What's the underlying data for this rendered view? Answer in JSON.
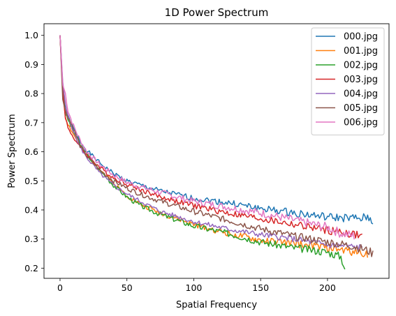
{
  "chart_data": {
    "type": "line",
    "title": "1D Power Spectrum",
    "xlabel": "Spatial Frequency",
    "ylabel": "Power Spectrum",
    "xlim": [
      -12,
      246
    ],
    "ylim": [
      0.165,
      1.04
    ],
    "xticks": [
      0,
      50,
      100,
      150,
      200
    ],
    "yticks": [
      0.2,
      0.3,
      0.4,
      0.5,
      0.6,
      0.7,
      0.8,
      0.9,
      1.0
    ],
    "grid": false,
    "legend_position": "top-right",
    "series": [
      {
        "name": "000.jpg",
        "color": "#1f77b4",
        "x_max": 234,
        "noise": 0.006,
        "seed": 1,
        "points": [
          [
            0,
            1.0
          ],
          [
            2,
            0.82
          ],
          [
            4,
            0.74
          ],
          [
            6,
            0.72
          ],
          [
            10,
            0.68
          ],
          [
            15,
            0.635
          ],
          [
            20,
            0.605
          ],
          [
            30,
            0.56
          ],
          [
            40,
            0.525
          ],
          [
            50,
            0.5
          ],
          [
            60,
            0.485
          ],
          [
            75,
            0.465
          ],
          [
            100,
            0.44
          ],
          [
            125,
            0.425
          ],
          [
            150,
            0.405
          ],
          [
            175,
            0.39
          ],
          [
            200,
            0.375
          ],
          [
            225,
            0.37
          ],
          [
            230,
            0.375
          ],
          [
            234,
            0.36
          ]
        ]
      },
      {
        "name": "001.jpg",
        "color": "#ff7f0e",
        "x_max": 230,
        "noise": 0.006,
        "seed": 2,
        "points": [
          [
            0,
            1.0
          ],
          [
            2,
            0.8
          ],
          [
            4,
            0.72
          ],
          [
            6,
            0.695
          ],
          [
            10,
            0.66
          ],
          [
            15,
            0.62
          ],
          [
            20,
            0.585
          ],
          [
            30,
            0.54
          ],
          [
            40,
            0.49
          ],
          [
            50,
            0.45
          ],
          [
            60,
            0.42
          ],
          [
            75,
            0.39
          ],
          [
            100,
            0.35
          ],
          [
            125,
            0.32
          ],
          [
            150,
            0.295
          ],
          [
            175,
            0.285
          ],
          [
            200,
            0.27
          ],
          [
            215,
            0.26
          ],
          [
            230,
            0.25
          ]
        ]
      },
      {
        "name": "002.jpg",
        "color": "#2ca02c",
        "x_max": 213,
        "noise": 0.006,
        "seed": 3,
        "points": [
          [
            0,
            1.0
          ],
          [
            2,
            0.82
          ],
          [
            4,
            0.73
          ],
          [
            6,
            0.71
          ],
          [
            10,
            0.67
          ],
          [
            15,
            0.625
          ],
          [
            20,
            0.59
          ],
          [
            30,
            0.535
          ],
          [
            40,
            0.485
          ],
          [
            50,
            0.445
          ],
          [
            60,
            0.415
          ],
          [
            75,
            0.385
          ],
          [
            100,
            0.345
          ],
          [
            125,
            0.32
          ],
          [
            150,
            0.29
          ],
          [
            175,
            0.27
          ],
          [
            200,
            0.255
          ],
          [
            210,
            0.24
          ],
          [
            213,
            0.2
          ]
        ]
      },
      {
        "name": "003.jpg",
        "color": "#d62728",
        "x_max": 226,
        "noise": 0.006,
        "seed": 4,
        "points": [
          [
            0,
            1.0
          ],
          [
            2,
            0.81
          ],
          [
            4,
            0.72
          ],
          [
            6,
            0.68
          ],
          [
            10,
            0.65
          ],
          [
            15,
            0.615
          ],
          [
            20,
            0.59
          ],
          [
            30,
            0.545
          ],
          [
            40,
            0.51
          ],
          [
            50,
            0.49
          ],
          [
            60,
            0.47
          ],
          [
            75,
            0.445
          ],
          [
            100,
            0.415
          ],
          [
            125,
            0.39
          ],
          [
            150,
            0.37
          ],
          [
            175,
            0.35
          ],
          [
            200,
            0.33
          ],
          [
            215,
            0.32
          ],
          [
            226,
            0.31
          ]
        ]
      },
      {
        "name": "004.jpg",
        "color": "#9467bd",
        "x_max": 226,
        "noise": 0.005,
        "seed": 5,
        "points": [
          [
            0,
            1.0
          ],
          [
            2,
            0.84
          ],
          [
            4,
            0.76
          ],
          [
            6,
            0.72
          ],
          [
            10,
            0.67
          ],
          [
            15,
            0.615
          ],
          [
            20,
            0.58
          ],
          [
            30,
            0.525
          ],
          [
            40,
            0.485
          ],
          [
            50,
            0.455
          ],
          [
            60,
            0.43
          ],
          [
            75,
            0.395
          ],
          [
            100,
            0.36
          ],
          [
            125,
            0.335
          ],
          [
            150,
            0.315
          ],
          [
            175,
            0.3
          ],
          [
            200,
            0.28
          ],
          [
            215,
            0.275
          ],
          [
            226,
            0.27
          ]
        ]
      },
      {
        "name": "005.jpg",
        "color": "#8c564b",
        "x_max": 234,
        "noise": 0.006,
        "seed": 6,
        "points": [
          [
            0,
            1.0
          ],
          [
            2,
            0.78
          ],
          [
            4,
            0.74
          ],
          [
            6,
            0.72
          ],
          [
            10,
            0.68
          ],
          [
            15,
            0.62
          ],
          [
            20,
            0.585
          ],
          [
            30,
            0.535
          ],
          [
            40,
            0.5
          ],
          [
            50,
            0.475
          ],
          [
            60,
            0.455
          ],
          [
            75,
            0.43
          ],
          [
            100,
            0.395
          ],
          [
            125,
            0.365
          ],
          [
            150,
            0.335
          ],
          [
            175,
            0.31
          ],
          [
            200,
            0.29
          ],
          [
            220,
            0.275
          ],
          [
            230,
            0.26
          ],
          [
            234,
            0.25
          ]
        ]
      },
      {
        "name": "006.jpg",
        "color": "#e377c2",
        "x_max": 220,
        "noise": 0.007,
        "seed": 7,
        "points": [
          [
            0,
            1.0
          ],
          [
            2,
            0.83
          ],
          [
            4,
            0.8
          ],
          [
            6,
            0.74
          ],
          [
            10,
            0.69
          ],
          [
            15,
            0.64
          ],
          [
            20,
            0.6
          ],
          [
            30,
            0.555
          ],
          [
            40,
            0.52
          ],
          [
            50,
            0.495
          ],
          [
            60,
            0.48
          ],
          [
            75,
            0.46
          ],
          [
            100,
            0.43
          ],
          [
            125,
            0.41
          ],
          [
            150,
            0.39
          ],
          [
            175,
            0.365
          ],
          [
            200,
            0.34
          ],
          [
            210,
            0.32
          ],
          [
            220,
            0.31
          ]
        ]
      }
    ]
  }
}
